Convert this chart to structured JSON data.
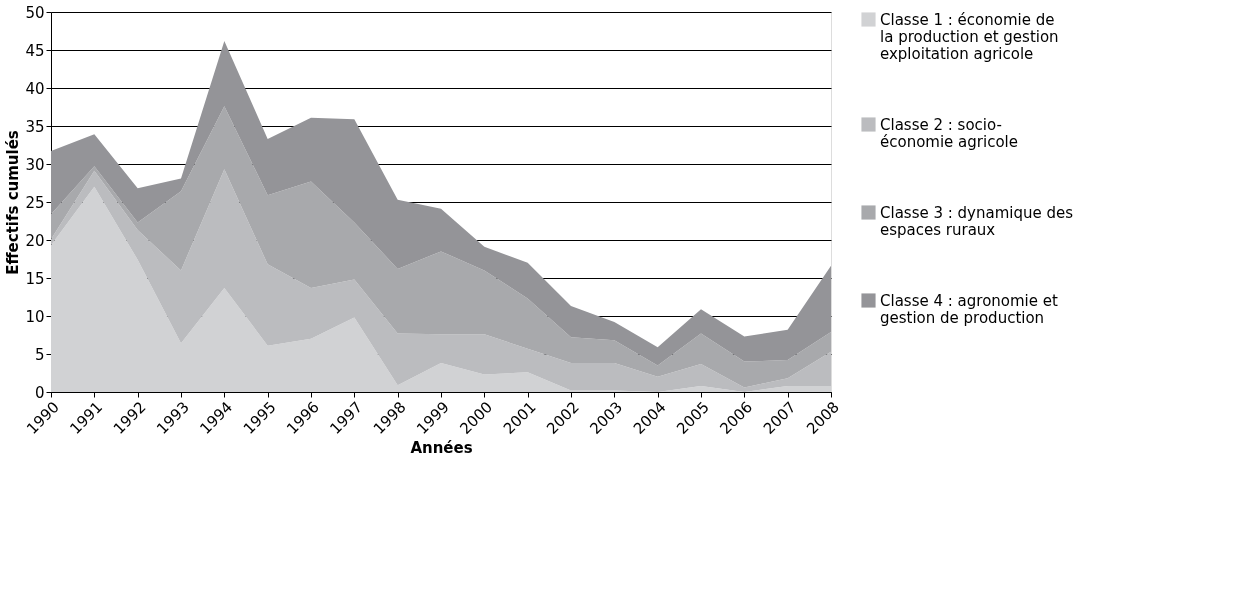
{
  "chart_data": {
    "type": "area",
    "stacked": true,
    "xlabel": "Années",
    "ylabel": "Effectifs cumulés",
    "categories": [
      "1990",
      "1991",
      "1992",
      "1993",
      "1994",
      "1995",
      "1996",
      "1997",
      "1998",
      "1999",
      "2000",
      "2001",
      "2002",
      "2003",
      "2004",
      "2005",
      "2006",
      "2007",
      "2008"
    ],
    "ylim": [
      0,
      50
    ],
    "yticks": [
      0,
      5,
      10,
      15,
      20,
      25,
      30,
      35,
      40,
      45,
      50
    ],
    "grid": "y",
    "legend": "right",
    "series": [
      {
        "name": "Classe 1 : économie de la production et gestion exploitation agricole",
        "color": "#d1d2d4",
        "values": [
          19.3,
          27,
          17.4,
          6.4,
          13.7,
          6.1,
          7,
          9.8,
          0.9,
          3.8,
          2.3,
          2.6,
          0.2,
          0.2,
          0,
          0.8,
          0,
          0.8,
          0.8
        ]
      },
      {
        "name": "Classe 2 : socio-économie agricole",
        "color": "#bbbcbf",
        "values": [
          0.8,
          2.1,
          3.9,
          9.6,
          15.6,
          10.7,
          6.7,
          5.0,
          6.8,
          3.8,
          5.3,
          3.1,
          3.6,
          3.6,
          2.0,
          2.9,
          0.6,
          1.0,
          4.5
        ]
      },
      {
        "name": "Classe 3 : dynamique des espaces ruraux",
        "color": "#a8a9ac",
        "values": [
          3.3,
          0.6,
          1.0,
          10.4,
          8.3,
          9.1,
          14.0,
          7.5,
          8.5,
          10.9,
          8.4,
          6.6,
          3.4,
          3.0,
          1.5,
          4.0,
          3.4,
          2.4,
          2.6
        ]
      },
      {
        "name": "Classe 4 : agronomie et gestion de production",
        "color": "#949498",
        "values": [
          8.3,
          4.2,
          4.5,
          1.7,
          8.6,
          7.4,
          8.4,
          13.6,
          9.1,
          5.6,
          3.1,
          4.7,
          4.1,
          2.4,
          2.4,
          3.2,
          3.3,
          4.0,
          8.7
        ]
      }
    ]
  }
}
